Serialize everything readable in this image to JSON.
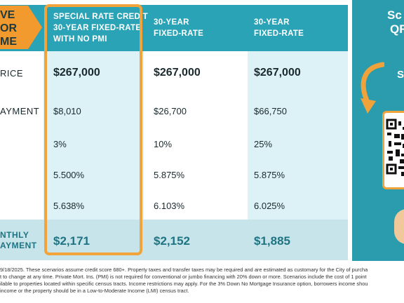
{
  "badge": {
    "lines": [
      "VE",
      "OR",
      "ME"
    ],
    "color": "#f29a2e"
  },
  "columns": [
    {
      "title_lines": [
        "SPECIAL RATE CREDIT",
        "30-YEAR FIXED-RATE",
        "WITH NO PMI"
      ]
    },
    {
      "title_lines": [
        "30-YEAR",
        "FIXED-RATE"
      ]
    },
    {
      "title_lines": [
        "30-YEAR",
        "FIXED-RATE"
      ]
    }
  ],
  "rows": [
    {
      "label": "RICE",
      "values": [
        "$267,000",
        "$267,000",
        "$267,000"
      ]
    },
    {
      "label": "AYMENT",
      "values": [
        "$8,010",
        "$26,700",
        "$66,750"
      ]
    },
    {
      "label": "",
      "values": [
        "3%",
        "10%",
        "25%"
      ]
    },
    {
      "label": "",
      "values": [
        "5.500%",
        "5.875%",
        "5.875%"
      ]
    },
    {
      "label": "",
      "values": [
        "5.638%",
        "6.103%",
        "6.025%"
      ]
    }
  ],
  "total_row": {
    "label_lines": [
      "NTHLY",
      "AYMENT"
    ],
    "values": [
      "$2,171",
      "$2,152",
      "$1,885"
    ]
  },
  "footer_lines": [
    "9/18/2025. These scenarios assume credit score 680+. Property taxes and transfer taxes may be required and are estimated as customary for the City of purcha",
    "t to change at any time. Private Mort. Ins. (PMI) is not required for conventional or jumbo financing with 20% down or more. Scenarios include the cost of 1 point",
    "ilable to properties located within specific census tracts. Income restrictions may apply. For the 3% Down No Mortgage Insurance option, borrowers income shou",
    "income or the property should be in a Low-to-Moderate Income (LMI) census tract."
  ],
  "right_panel": {
    "line1": "Sc",
    "line2": "QR",
    "line3": "S"
  },
  "colors": {
    "header": "#2aa3b6",
    "accent": "#f2a43a",
    "total_text": "#1e7482"
  }
}
